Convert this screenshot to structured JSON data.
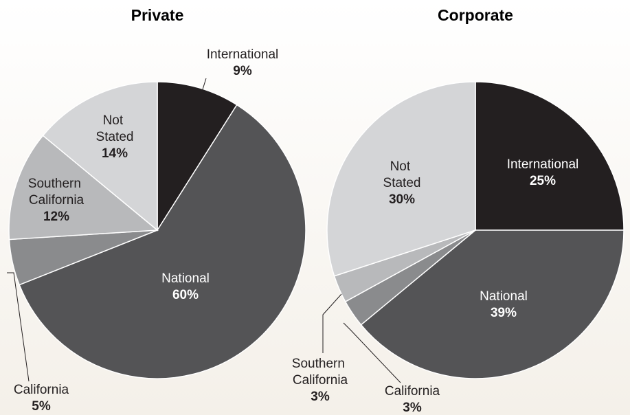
{
  "chart_data": [
    {
      "type": "pie",
      "title": "Private",
      "categories": [
        "International",
        "National",
        "California",
        "Southern California",
        "Not Stated"
      ],
      "values": [
        9,
        60,
        5,
        12,
        14
      ],
      "value_labels": [
        "9%",
        "60%",
        "5%",
        "12%",
        "14%"
      ],
      "colors": [
        "#231f20",
        "#545456",
        "#8a8b8d",
        "#b8b9bb",
        "#d4d5d7"
      ]
    },
    {
      "type": "pie",
      "title": "Corporate",
      "categories": [
        "International",
        "National",
        "California",
        "Southern California",
        "Not Stated"
      ],
      "values": [
        25,
        39,
        3,
        3,
        30
      ],
      "value_labels": [
        "25%",
        "39%",
        "3%",
        "3%",
        "30%"
      ],
      "colors": [
        "#231f20",
        "#545456",
        "#8a8b8d",
        "#b8b9bb",
        "#d4d5d7"
      ]
    }
  ]
}
